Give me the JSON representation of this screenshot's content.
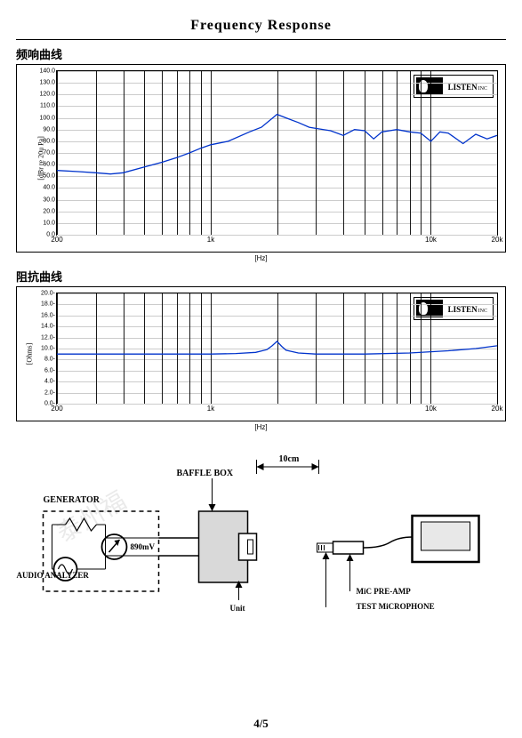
{
  "page": {
    "title": "Frequency  Response",
    "page_number": "4/5"
  },
  "chart1": {
    "section_label": "频响曲线",
    "type": "line",
    "ylabel": "[dBr re 20u Pa]",
    "xlabel": "[Hz]",
    "xscale": "log",
    "xlim": [
      200,
      20000
    ],
    "ylim": [
      0,
      140
    ],
    "ytick_step": 10,
    "yticks": [
      "0.0",
      "10.0",
      "20.0",
      "30.0",
      "40.0",
      "50.0",
      "60.0",
      "70.0",
      "80.0",
      "90.0",
      "100.0",
      "110.0",
      "120.0",
      "130.0",
      "140.0"
    ],
    "xticks": [
      {
        "v": 200,
        "label": "200"
      },
      {
        "v": 300
      },
      {
        "v": 400
      },
      {
        "v": 500
      },
      {
        "v": 600
      },
      {
        "v": 700
      },
      {
        "v": 800
      },
      {
        "v": 900
      },
      {
        "v": 1000,
        "label": "1k"
      },
      {
        "v": 2000
      },
      {
        "v": 3000
      },
      {
        "v": 4000
      },
      {
        "v": 5000
      },
      {
        "v": 6000
      },
      {
        "v": 7000
      },
      {
        "v": 8000
      },
      {
        "v": 9000
      },
      {
        "v": 10000,
        "label": "10k"
      },
      {
        "v": 20000,
        "label": "20k"
      }
    ],
    "line_color": "#0033cc",
    "line_width": 1.3,
    "grid_color": "#cccccc",
    "points_hz_db": [
      [
        200,
        55
      ],
      [
        250,
        54
      ],
      [
        300,
        53
      ],
      [
        350,
        52
      ],
      [
        400,
        53
      ],
      [
        500,
        58
      ],
      [
        600,
        62
      ],
      [
        700,
        66
      ],
      [
        800,
        70
      ],
      [
        900,
        74
      ],
      [
        1000,
        77
      ],
      [
        1200,
        80
      ],
      [
        1500,
        88
      ],
      [
        1700,
        92
      ],
      [
        2000,
        103
      ],
      [
        2200,
        100
      ],
      [
        2500,
        96
      ],
      [
        2800,
        92
      ],
      [
        3000,
        91
      ],
      [
        3500,
        89
      ],
      [
        4000,
        85
      ],
      [
        4500,
        90
      ],
      [
        5000,
        89
      ],
      [
        5500,
        82
      ],
      [
        6000,
        88
      ],
      [
        6500,
        89
      ],
      [
        7000,
        90
      ],
      [
        8000,
        88
      ],
      [
        9000,
        87
      ],
      [
        10000,
        80
      ],
      [
        11000,
        88
      ],
      [
        12000,
        87
      ],
      [
        14000,
        78
      ],
      [
        16000,
        86
      ],
      [
        18000,
        82
      ],
      [
        20000,
        85
      ]
    ],
    "logo": {
      "main": "LISTEN",
      "sub": "INC"
    }
  },
  "chart2": {
    "section_label": "阻抗曲线",
    "type": "line",
    "ylabel": "[Ohms]",
    "xlabel": "[Hz]",
    "xscale": "log",
    "xlim": [
      200,
      20000
    ],
    "ylim": [
      0,
      20
    ],
    "ytick_step": 2,
    "yticks": [
      "0.0-",
      "2.0-",
      "4.0-",
      "6.0-",
      "8.0-",
      "10.0-",
      "12.0-",
      "14.0-",
      "16.0-",
      "18.0-",
      "20.0-"
    ],
    "xticks": [
      {
        "v": 200,
        "label": "200"
      },
      {
        "v": 300
      },
      {
        "v": 400
      },
      {
        "v": 500
      },
      {
        "v": 600
      },
      {
        "v": 700
      },
      {
        "v": 800
      },
      {
        "v": 900
      },
      {
        "v": 1000,
        "label": "1k"
      },
      {
        "v": 2000
      },
      {
        "v": 3000
      },
      {
        "v": 4000
      },
      {
        "v": 5000
      },
      {
        "v": 6000
      },
      {
        "v": 7000
      },
      {
        "v": 8000
      },
      {
        "v": 9000
      },
      {
        "v": 10000,
        "label": "10k"
      },
      {
        "v": 20000,
        "label": "20k"
      }
    ],
    "line_color": "#0033cc",
    "line_width": 1.3,
    "grid_color": "#cccccc",
    "points_hz_ohm": [
      [
        200,
        9.0
      ],
      [
        400,
        9.0
      ],
      [
        700,
        9.0
      ],
      [
        1000,
        9.0
      ],
      [
        1300,
        9.1
      ],
      [
        1600,
        9.3
      ],
      [
        1800,
        9.8
      ],
      [
        1900,
        10.5
      ],
      [
        2000,
        11.3
      ],
      [
        2100,
        10.4
      ],
      [
        2200,
        9.7
      ],
      [
        2500,
        9.2
      ],
      [
        3000,
        9.0
      ],
      [
        5000,
        9.0
      ],
      [
        8000,
        9.2
      ],
      [
        12000,
        9.6
      ],
      [
        16000,
        10.0
      ],
      [
        20000,
        10.5
      ]
    ],
    "logo": {
      "main": "LISTEN",
      "sub": "INC"
    }
  },
  "diagram": {
    "labels": {
      "generator": "GENERATOR",
      "baffle_box": "BAFFLE BOX",
      "distance": "10cm",
      "voltage": "890mV",
      "unit": "Unit",
      "analyzer": "AUDIO ANALYZER",
      "preamp": "MiC PRE-AMP",
      "mic": "TEST MiCROPHONE"
    }
  },
  "watermark": "泰州福"
}
